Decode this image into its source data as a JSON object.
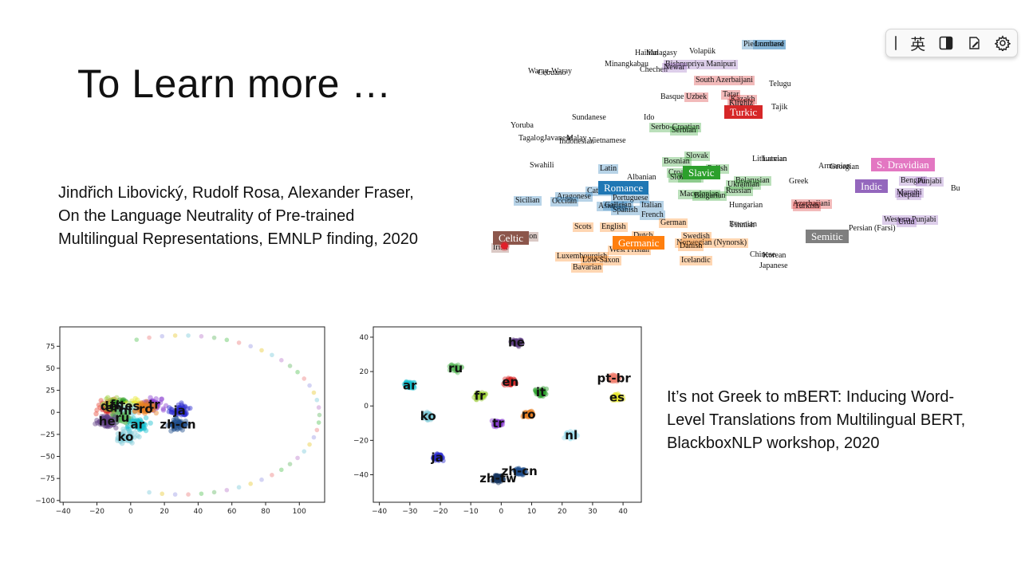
{
  "slide": {
    "title": "To Learn more …",
    "ref1": {
      "lines": [
        "Jindřich Libovický, Rudolf Rosa, Alexander Fraser,",
        "On the Language Neutrality of Pre-trained",
        "Multilingual Representations, EMNLP finding, 2020"
      ]
    },
    "ref2": {
      "lines": [
        "It’s not Greek to mBERT: Inducing Word-",
        "Level Translations from Multilingual BERT,",
        "BlackboxNLP workshop, 2020"
      ]
    }
  },
  "toolbar": {
    "ime_label": "英",
    "icons": [
      "grip-icon",
      "layout-icon",
      "handwriting-icon",
      "gear-icon"
    ]
  },
  "language_map": {
    "families": [
      {
        "name": "Turkic",
        "color": "#d62728"
      },
      {
        "name": "Romance",
        "color": "#1f77b4"
      },
      {
        "name": "Slavic",
        "color": "#2ca02c"
      },
      {
        "name": "S. Dravidian",
        "color": "#e377c2"
      },
      {
        "name": "Indic",
        "color": "#9467bd"
      },
      {
        "name": "Celtic",
        "color": "#8c564b"
      },
      {
        "name": "Germanic",
        "color": "#ff7f0e"
      },
      {
        "name": "Semitic",
        "color": "#7f7f7f"
      }
    ],
    "languages": [
      {
        "name": "Haitian",
        "group": "none"
      },
      {
        "name": "Malagasy",
        "group": "none"
      },
      {
        "name": "Volapük",
        "group": "none"
      },
      {
        "name": "Piedmontese",
        "group": "Romance"
      },
      {
        "name": "Lombard",
        "group": "Romance"
      },
      {
        "name": "Minangkabau",
        "group": "none"
      },
      {
        "name": "Bishnupriya Manipuri",
        "group": "Indic"
      },
      {
        "name": "Waray-Waray",
        "group": "none"
      },
      {
        "name": "Cebuano",
        "group": "none"
      },
      {
        "name": "Chechen",
        "group": "none"
      },
      {
        "name": "Newar",
        "group": "Indic"
      },
      {
        "name": "South Azerbaijani",
        "group": "Turkic"
      },
      {
        "name": "Telugu",
        "group": "none"
      },
      {
        "name": "Basque",
        "group": "none"
      },
      {
        "name": "Uzbek",
        "group": "Turkic"
      },
      {
        "name": "Tatar",
        "group": "Turkic"
      },
      {
        "name": "Kazakh",
        "group": "Turkic"
      },
      {
        "name": "Kirghiz",
        "group": "Turkic"
      },
      {
        "name": "Tajik",
        "group": "none"
      },
      {
        "name": "Sundanese",
        "group": "none"
      },
      {
        "name": "Ido",
        "group": "none"
      },
      {
        "name": "Yoruba",
        "group": "none"
      },
      {
        "name": "Serbo-Croatian",
        "group": "Slavic"
      },
      {
        "name": "Serbian",
        "group": "Slavic"
      },
      {
        "name": "Tagalog",
        "group": "none"
      },
      {
        "name": "Javanese",
        "group": "none"
      },
      {
        "name": "Malay",
        "group": "none"
      },
      {
        "name": "Indonesian",
        "group": "none"
      },
      {
        "name": "Vietnamese",
        "group": "none"
      },
      {
        "name": "Slovak",
        "group": "Slavic"
      },
      {
        "name": "Lithuanian",
        "group": "none"
      },
      {
        "name": "Latvian",
        "group": "none"
      },
      {
        "name": "Bosnian",
        "group": "Slavic"
      },
      {
        "name": "Swahili",
        "group": "none"
      },
      {
        "name": "Armenian",
        "group": "none"
      },
      {
        "name": "Georgian",
        "group": "none"
      },
      {
        "name": "Latin",
        "group": "Romance"
      },
      {
        "name": "Croatian",
        "group": "Slavic"
      },
      {
        "name": "Polish",
        "group": "Slavic"
      },
      {
        "name": "Czech",
        "group": "Slavic"
      },
      {
        "name": "Slovenian",
        "group": "Slavic"
      },
      {
        "name": "Albanian",
        "group": "none"
      },
      {
        "name": "Belarusian",
        "group": "Slavic"
      },
      {
        "name": "Ukrainian",
        "group": "Slavic"
      },
      {
        "name": "Greek",
        "group": "none"
      },
      {
        "name": "Bengali",
        "group": "Indic"
      },
      {
        "name": "Punjabi",
        "group": "Indic"
      },
      {
        "name": "Catalan",
        "group": "Romance"
      },
      {
        "name": "Russian",
        "group": "Slavic"
      },
      {
        "name": "Marathi",
        "group": "Indic"
      },
      {
        "name": "Nepali",
        "group": "Indic"
      },
      {
        "name": "Sicilian",
        "group": "Romance"
      },
      {
        "name": "Aragonese",
        "group": "Romance"
      },
      {
        "name": "Occitan",
        "group": "Romance"
      },
      {
        "name": "Portuguese",
        "group": "Romance"
      },
      {
        "name": "Macedonian",
        "group": "Slavic"
      },
      {
        "name": "Bulgarian",
        "group": "Slavic"
      },
      {
        "name": "Asturian",
        "group": "Romance"
      },
      {
        "name": "Galician",
        "group": "Romance"
      },
      {
        "name": "Italian",
        "group": "Romance"
      },
      {
        "name": "Spanish",
        "group": "Romance"
      },
      {
        "name": "Hungarian",
        "group": "none"
      },
      {
        "name": "Azerbaijani",
        "group": "Turkic"
      },
      {
        "name": "Turkish",
        "group": "Turkic"
      },
      {
        "name": "French",
        "group": "Romance"
      },
      {
        "name": "Western Punjabi",
        "group": "Indic"
      },
      {
        "name": "Urdu",
        "group": "Indic"
      },
      {
        "name": "German",
        "group": "Germanic"
      },
      {
        "name": "Estonian",
        "group": "none"
      },
      {
        "name": "Finnish",
        "group": "none"
      },
      {
        "name": "Scots",
        "group": "Germanic"
      },
      {
        "name": "English",
        "group": "Germanic"
      },
      {
        "name": "Persian (Farsi)",
        "group": "none"
      },
      {
        "name": "Dutch",
        "group": "Germanic"
      },
      {
        "name": "Welsh",
        "group": "Celtic"
      },
      {
        "name": "Breton",
        "group": "Celtic"
      },
      {
        "name": "Irish",
        "group": "Celtic"
      },
      {
        "name": "Swedish",
        "group": "Germanic"
      },
      {
        "name": "Norwegian (Nynorsk)",
        "group": "Germanic"
      },
      {
        "name": "Danish",
        "group": "Germanic"
      },
      {
        "name": "West Frisian",
        "group": "Germanic"
      },
      {
        "name": "Luxembourgish",
        "group": "Germanic"
      },
      {
        "name": "Low-Saxon",
        "group": "Germanic"
      },
      {
        "name": "Chinese",
        "group": "none"
      },
      {
        "name": "Korean",
        "group": "none"
      },
      {
        "name": "Icelandic",
        "group": "Germanic"
      },
      {
        "name": "Japanese",
        "group": "none"
      },
      {
        "name": "Bavarian",
        "group": "Germanic"
      },
      {
        "name": "Bu",
        "group": "none"
      }
    ]
  },
  "chart_data": [
    {
      "type": "scatter",
      "xlim": [
        -42,
        115
      ],
      "ylim": [
        -102,
        97
      ],
      "xticks": [
        -40,
        -20,
        0,
        20,
        40,
        60,
        80,
        100
      ],
      "yticks": [
        75,
        50,
        25,
        0,
        -25,
        -50,
        -75,
        -100
      ],
      "clusters": [
        {
          "label": "de",
          "x": -13,
          "y": 7
        },
        {
          "label": "en",
          "x": -10,
          "y": 5
        },
        {
          "label": "fr",
          "x": -9,
          "y": 9
        },
        {
          "label": "it",
          "x": -6,
          "y": 8
        },
        {
          "label": "es",
          "x": 1,
          "y": 7
        },
        {
          "label": "nl",
          "x": -3,
          "y": 2
        },
        {
          "label": "tr",
          "x": 14,
          "y": 9
        },
        {
          "label": "ro",
          "x": 9,
          "y": 4
        },
        {
          "label": "ru",
          "x": -5,
          "y": -6
        },
        {
          "label": "he",
          "x": -14,
          "y": -10
        },
        {
          "label": "ar",
          "x": 4,
          "y": -14
        },
        {
          "label": "ja",
          "x": 29,
          "y": 2
        },
        {
          "label": "zh-cn",
          "x": 28,
          "y": -14
        },
        {
          "label": "ko",
          "x": -3,
          "y": -28
        }
      ]
    },
    {
      "type": "scatter",
      "xlim": [
        -42,
        46
      ],
      "ylim": [
        -56,
        46
      ],
      "xticks": [
        -40,
        -30,
        -20,
        -10,
        0,
        10,
        20,
        30,
        40
      ],
      "yticks": [
        40,
        20,
        0,
        -20,
        -40
      ],
      "clusters": [
        {
          "label": "he",
          "x": 5,
          "y": 37
        },
        {
          "label": "ru",
          "x": -15,
          "y": 22
        },
        {
          "label": "en",
          "x": 3,
          "y": 14
        },
        {
          "label": "pt-br",
          "x": 37,
          "y": 16
        },
        {
          "label": "ar",
          "x": -30,
          "y": 12
        },
        {
          "label": "fr",
          "x": -7,
          "y": 6
        },
        {
          "label": "it",
          "x": 13,
          "y": 8
        },
        {
          "label": "es",
          "x": 38,
          "y": 5
        },
        {
          "label": "ro",
          "x": 9,
          "y": -5
        },
        {
          "label": "ko",
          "x": -24,
          "y": -6
        },
        {
          "label": "tr",
          "x": -1,
          "y": -10
        },
        {
          "label": "nl",
          "x": 23,
          "y": -17
        },
        {
          "label": "ja",
          "x": -21,
          "y": -30
        },
        {
          "label": "zh-cn",
          "x": 6,
          "y": -38
        },
        {
          "label": "zh-tw",
          "x": -1,
          "y": -42
        }
      ]
    }
  ]
}
